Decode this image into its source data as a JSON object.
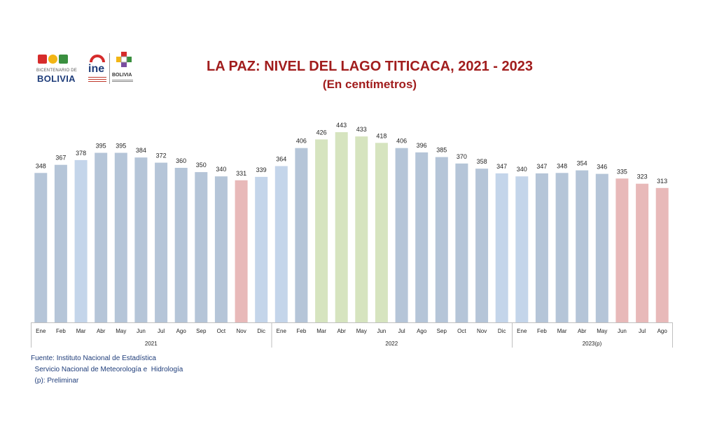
{
  "logos": {
    "bicentenario_small": "BICENTENARIO DE",
    "bicentenario_big": "BOLIVIA",
    "ine": "ine",
    "bolivia": "BOLIVIA",
    "colors": {
      "red": "#d62b2b",
      "yellow": "#f2b515",
      "green": "#3a8f3f",
      "navy": "#1f3d7a"
    }
  },
  "chart_data": {
    "type": "bar",
    "title": "LA PAZ: NIVEL DEL LAGO TITICACA, 2021 - 2023",
    "subtitle": "(En centímetros)",
    "categories": [
      "Ene",
      "Feb",
      "Mar",
      "Abr",
      "May",
      "Jun",
      "Jul",
      "Ago",
      "Sep",
      "Oct",
      "Nov",
      "Dic",
      "Ene",
      "Feb",
      "Mar",
      "Abr",
      "May",
      "Jun",
      "Jul",
      "Ago",
      "Sep",
      "Oct",
      "Nov",
      "Dic",
      "Ene",
      "Feb",
      "Mar",
      "Abr",
      "May",
      "Jun",
      "Jul",
      "Ago"
    ],
    "values": [
      348,
      367,
      378,
      395,
      395,
      384,
      372,
      360,
      350,
      340,
      331,
      339,
      364,
      406,
      426,
      443,
      433,
      418,
      406,
      396,
      385,
      370,
      358,
      347,
      340,
      347,
      348,
      354,
      346,
      335,
      323,
      313
    ],
    "bar_colors": [
      "blue",
      "blue",
      "lightblue",
      "blue",
      "blue",
      "blue",
      "blue",
      "blue",
      "blue",
      "blue",
      "red",
      "lightblue",
      "lightblue",
      "blue",
      "green",
      "green",
      "green",
      "green",
      "blue",
      "blue",
      "blue",
      "blue",
      "blue",
      "lightblue",
      "lightblue",
      "blue",
      "blue",
      "blue",
      "blue",
      "red",
      "red",
      "red"
    ],
    "palette": {
      "blue": "#b5c5d8",
      "lightblue": "#c4d5ea",
      "green": "#d6e4bf",
      "red": "#e8b9b9"
    },
    "groups": [
      {
        "label": "2021",
        "count": 12
      },
      {
        "label": "2022",
        "count": 12
      },
      {
        "label": "2023(p)",
        "count": 8
      }
    ],
    "ylim": [
      0,
      443
    ],
    "grid": false,
    "xlabel": "",
    "ylabel": ""
  },
  "footer": {
    "source": "Fuente: Instituto Nacional de Estadística",
    "source2": "  Servicio Nacional de Meteorología e  Hidrología",
    "note": "  (p): Preliminar"
  }
}
